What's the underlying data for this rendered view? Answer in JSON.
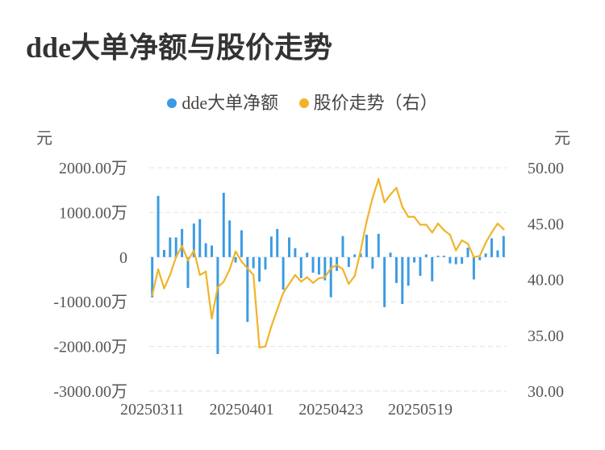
{
  "title": "dde大单净额与股价走势",
  "legend": [
    {
      "label": "dde大单净额",
      "color": "#3a9be3"
    },
    {
      "label": "股价走势（右）",
      "color": "#f0b429"
    }
  ],
  "chart_data": {
    "type": "bar+line",
    "left_axis": {
      "unit": "元",
      "ticks": [
        "2000.00万",
        "1000.00万",
        "0",
        "-1000.00万",
        "-2000.00万",
        "-3000.00万"
      ],
      "values": [
        2000,
        1000,
        0,
        -1000,
        -2000,
        -3000
      ],
      "ylim": [
        -3000,
        2000
      ]
    },
    "right_axis": {
      "unit": "元",
      "ticks": [
        "50.00",
        "45.00",
        "40.00",
        "35.00",
        "30.00"
      ],
      "values": [
        50,
        45,
        40,
        35,
        30
      ],
      "ylim": [
        30,
        50
      ]
    },
    "x_tick_labels": [
      "20250311",
      "20250401",
      "20250423",
      "20250519"
    ],
    "x_tick_indices": [
      0,
      15,
      30,
      45
    ],
    "grid": true,
    "series": [
      {
        "name": "dde大单净额",
        "type": "bar",
        "axis": "left",
        "color": "#3a9be3",
        "values": [
          -900,
          1370,
          160,
          440,
          440,
          630,
          -690,
          750,
          850,
          310,
          260,
          -2170,
          1440,
          820,
          -120,
          600,
          -1450,
          -250,
          -550,
          -280,
          460,
          630,
          -730,
          440,
          200,
          -470,
          100,
          -350,
          -390,
          -520,
          -900,
          -310,
          470,
          -220,
          60,
          80,
          500,
          -260,
          520,
          -1120,
          100,
          -580,
          -1050,
          -640,
          -120,
          -420,
          60,
          -540,
          30,
          30,
          -140,
          -160,
          -150,
          210,
          -500,
          -70,
          80,
          420,
          150,
          470
        ]
      },
      {
        "name": "股价走势（右）",
        "type": "line",
        "axis": "right",
        "color": "#f0b429",
        "values": [
          38.6,
          40.9,
          39.2,
          40.4,
          42.0,
          43.0,
          41.7,
          42.6,
          40.4,
          40.7,
          36.5,
          39.3,
          39.8,
          40.9,
          42.5,
          41.6,
          41.0,
          40.4,
          33.9,
          34.0,
          35.8,
          37.3,
          38.8,
          39.6,
          40.4,
          39.8,
          40.2,
          39.7,
          40.1,
          40.2,
          41.0,
          41.3,
          40.9,
          39.6,
          40.3,
          42.6,
          45.2,
          47.3,
          49.0,
          46.9,
          47.6,
          48.2,
          46.5,
          45.6,
          45.6,
          44.9,
          44.9,
          44.2,
          45.0,
          44.4,
          44.0,
          42.6,
          43.5,
          43.2,
          42.0,
          42.1,
          43.3,
          44.2,
          45.0,
          44.5
        ]
      }
    ]
  }
}
